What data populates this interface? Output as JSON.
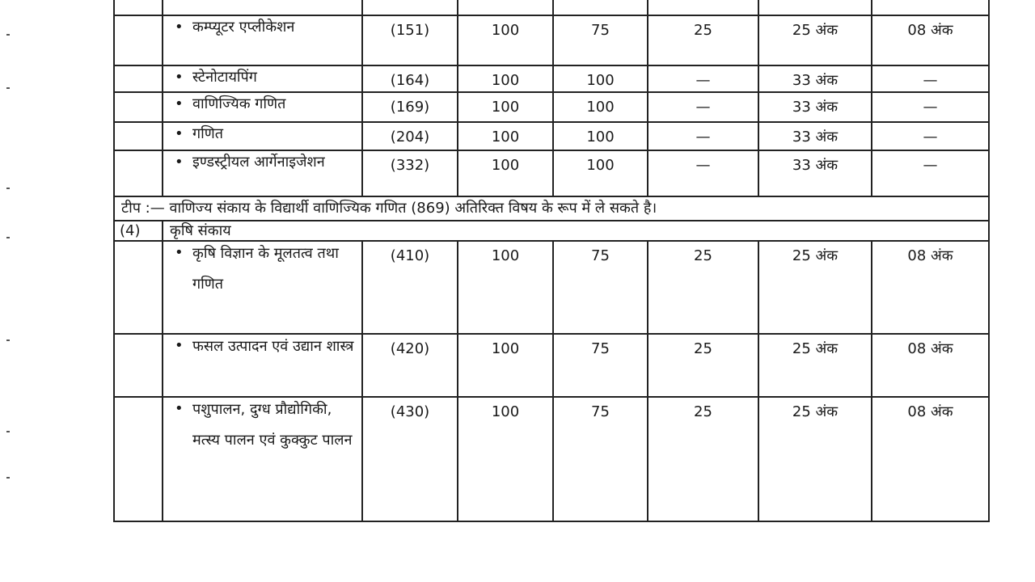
{
  "rows_commerce": [
    {
      "subject": "कम्प्यूटर एप्लीकेशन",
      "code": "(151)",
      "total": "100",
      "theory": "75",
      "practical": "25",
      "pass_theory": "25 अंक",
      "pass_practical": "08 अंक"
    },
    {
      "subject": "स्टेनोटायपिंग",
      "code": "(164)",
      "total": "100",
      "theory": "100",
      "practical": "—",
      "pass_theory": "33 अंक",
      "pass_practical": "—"
    },
    {
      "subject": "वाणिज्यिक गणित",
      "code": "(169)",
      "total": "100",
      "theory": "100",
      "practical": "—",
      "pass_theory": "33 अंक",
      "pass_practical": "—"
    },
    {
      "subject": "गणित",
      "code": "(204)",
      "total": "100",
      "theory": "100",
      "practical": "—",
      "pass_theory": "33 अंक",
      "pass_practical": "—"
    },
    {
      "subject": "इण्डस्ट्रीयल आर्गेनाइजेशन",
      "code": "(332)",
      "total": "100",
      "theory": "100",
      "practical": "—",
      "pass_theory": "33 अंक",
      "pass_practical": "—"
    }
  ],
  "tip": "टीप :— वाणिज्य संकाय के विद्यार्थी वाणिज्यिक गणित (869) अतिरिक्त विषय के रूप में ले सकते है।",
  "section": {
    "number": "(4)",
    "title": "कृषि संकाय"
  },
  "rows_agriculture": [
    {
      "subject": "कृषि विज्ञान के मूलतत्व तथा गणित",
      "code": "(410)",
      "total": "100",
      "theory": "75",
      "practical": "25",
      "pass_theory": "25 अंक",
      "pass_practical": "08 अंक"
    },
    {
      "subject": "फसल उत्पादन एवं उद्यान शास्त्र",
      "code": "(420)",
      "total": "100",
      "theory": "75",
      "practical": "25",
      "pass_theory": "25 अंक",
      "pass_practical": "08 अंक"
    },
    {
      "subject": "पशुपालन, दुग्ध प्रौद्योगिकी, मत्स्य पालन एवं कुक्कुट पालन",
      "code": "(430)",
      "total": "100",
      "theory": "75",
      "practical": "25",
      "pass_theory": "25 अंक",
      "pass_practical": "08 अंक"
    }
  ]
}
